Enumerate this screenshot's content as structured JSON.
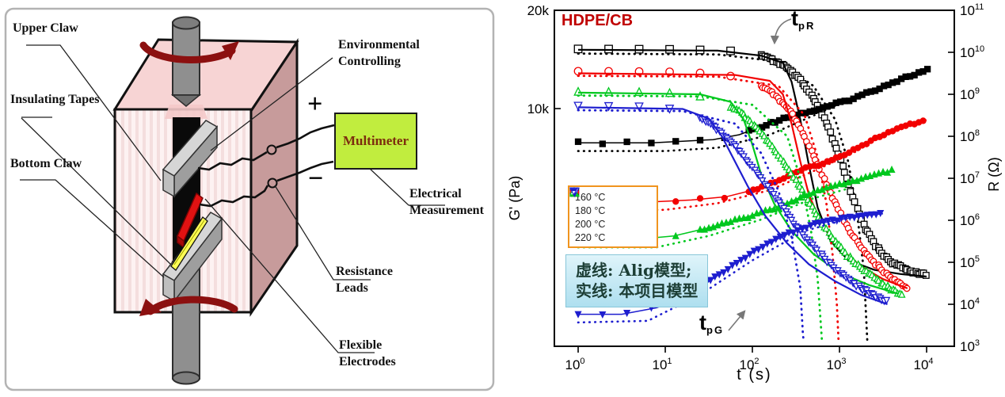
{
  "left_panel": {
    "labels": {
      "upper_claw": "Upper Claw",
      "insulating_tapes": "Insulating Tapes",
      "bottom_claw": "Bottom Claw",
      "environmental_line1": "Environmental",
      "environmental_line2": "Controlling",
      "electrical_line1": "Electrical",
      "electrical_line2": "Measurement",
      "resistance_line1": "Resistance",
      "resistance_line2": "Leads",
      "flexible_line1": "Flexible",
      "flexible_line2": "Electrodes",
      "plus_sign": "+",
      "minus_sign": "−",
      "multimeter": "Multimeter"
    },
    "colors": {
      "box_top": "#f7d4d4",
      "box_front": "#fdf1f1",
      "box_front_stripe": "#f4dede",
      "box_side": "#c79b9b",
      "rotation_arrow": "#8c1010",
      "shaft": "#8f8f8f",
      "claw_top": "#d6d6d6",
      "claw_front": "#9e9e9e",
      "claw_cap": "#bfbfbf",
      "sample": "#0a0a0a",
      "electrode": "#e01212",
      "tape": "#ffff55",
      "multimeter_bg": "#c1ed3e",
      "multimeter_text": "#7c2d0e"
    }
  },
  "chart_data": {
    "type": "scatter",
    "title": "HDPE/CB",
    "title_color": "#c00000",
    "xlabel": "t (s)",
    "ylabel_left": "G' (Pa)",
    "ylabel_right": "R (Ω)",
    "x_ticks": [
      0,
      1,
      2,
      3,
      4
    ],
    "right_axis_ticks": [
      11,
      10,
      9,
      8,
      7,
      6,
      5,
      4,
      3
    ],
    "left_axis_ticks": [
      {
        "label": "20k",
        "value": 20000
      },
      {
        "label": "10k",
        "value": 10000
      }
    ],
    "axes": {
      "x_log_min": -0.273,
      "x_log_max": 4.318,
      "left_log_min": 3.272,
      "left_log_max": 4.301,
      "right_log_min": 3,
      "right_log_max": 11,
      "grid": false
    },
    "legend": {
      "border_color": "#f0941e"
    },
    "annotations": [
      {
        "id": "tpR",
        "main": "t",
        "sub": "pR"
      },
      {
        "id": "tpG",
        "main": "t",
        "sub": "pG"
      }
    ],
    "note_box": {
      "line1": "虚线: Alig模型;",
      "line2": "实线: 本项目模型"
    },
    "series": [
      {
        "name": "160 °C",
        "color": "#000000",
        "symbol": "square",
        "dense_from": 2.1,
        "g_dense_from": 1.85,
        "R": [
          [
            0,
            10.08
          ],
          [
            1.2,
            10.07
          ],
          [
            1.8,
            10.03
          ],
          [
            2.1,
            9.93
          ],
          [
            2.35,
            9.7
          ],
          [
            2.55,
            9.35
          ],
          [
            2.7,
            8.9
          ],
          [
            2.85,
            8.3
          ],
          [
            3.0,
            7.5
          ],
          [
            3.1,
            6.9
          ],
          [
            3.2,
            6.3
          ],
          [
            3.3,
            5.8
          ],
          [
            3.45,
            5.3
          ],
          [
            3.6,
            5.0
          ],
          [
            3.8,
            4.8
          ],
          [
            4.0,
            4.7
          ]
        ],
        "R_solid": [
          [
            0,
            10.06
          ],
          [
            1.6,
            10.04
          ],
          [
            2.1,
            9.92
          ],
          [
            2.35,
            9.75
          ],
          [
            2.45,
            9.3
          ],
          [
            2.55,
            8.4
          ],
          [
            2.65,
            7.3
          ],
          [
            2.75,
            6.3
          ],
          [
            2.9,
            5.5
          ],
          [
            3.1,
            5.05
          ],
          [
            3.4,
            4.82
          ],
          [
            3.7,
            4.72
          ],
          [
            4.0,
            4.66
          ]
        ],
        "R_alig": [
          [
            0,
            9.97
          ],
          [
            1.6,
            9.95
          ],
          [
            2.3,
            9.78
          ],
          [
            2.7,
            9.2
          ],
          [
            2.95,
            8.4
          ],
          [
            3.1,
            7.4
          ],
          [
            3.2,
            6.2
          ],
          [
            3.28,
            4.8
          ],
          [
            3.32,
            3.1
          ]
        ],
        "G": [
          [
            0,
            3.895
          ],
          [
            0.85,
            3.895
          ],
          [
            1.2,
            3.9
          ],
          [
            1.55,
            3.905
          ],
          [
            1.85,
            3.92
          ],
          [
            2.1,
            3.945
          ],
          [
            2.4,
            3.975
          ],
          [
            2.8,
            4.0
          ],
          [
            3.2,
            4.035
          ],
          [
            3.7,
            4.09
          ],
          [
            4.03,
            4.12
          ]
        ],
        "G_alig": [
          [
            0,
            3.87
          ],
          [
            1.0,
            3.87
          ],
          [
            1.6,
            3.88
          ],
          [
            2.2,
            3.92
          ],
          [
            2.8,
            3.99
          ],
          [
            3.2,
            4.04
          ]
        ]
      },
      {
        "name": "180 °C",
        "color": "#f20000",
        "symbol": "circle",
        "dense_from": 1.9,
        "g_dense_from": 1.7,
        "R": [
          [
            0,
            9.55
          ],
          [
            1.0,
            9.54
          ],
          [
            1.5,
            9.5
          ],
          [
            1.8,
            9.42
          ],
          [
            2.05,
            9.25
          ],
          [
            2.25,
            9.0
          ],
          [
            2.45,
            8.55
          ],
          [
            2.6,
            8.0
          ],
          [
            2.75,
            7.3
          ],
          [
            2.9,
            6.6
          ],
          [
            3.05,
            6.0
          ],
          [
            3.2,
            5.5
          ],
          [
            3.35,
            5.1
          ],
          [
            3.5,
            4.8
          ],
          [
            3.65,
            4.55
          ],
          [
            3.8,
            4.35
          ]
        ],
        "R_solid": [
          [
            0,
            9.5
          ],
          [
            1.8,
            9.46
          ],
          [
            2.2,
            9.32
          ],
          [
            2.35,
            9.0
          ],
          [
            2.45,
            8.3
          ],
          [
            2.55,
            7.4
          ],
          [
            2.65,
            6.6
          ],
          [
            2.8,
            5.9
          ],
          [
            3.0,
            5.35
          ],
          [
            3.25,
            4.9
          ],
          [
            3.5,
            4.6
          ],
          [
            3.78,
            4.38
          ]
        ],
        "R_alig": [
          [
            0,
            9.44
          ],
          [
            1.6,
            9.42
          ],
          [
            2.3,
            9.2
          ],
          [
            2.6,
            8.5
          ],
          [
            2.75,
            7.5
          ],
          [
            2.85,
            6.4
          ],
          [
            2.92,
            5.2
          ],
          [
            2.97,
            4.0
          ],
          [
            2.99,
            3.1
          ]
        ],
        "G": [
          [
            0,
            3.715
          ],
          [
            0.9,
            3.715
          ],
          [
            1.3,
            3.72
          ],
          [
            1.7,
            3.73
          ],
          [
            2.0,
            3.75
          ],
          [
            2.3,
            3.78
          ],
          [
            2.6,
            3.815
          ],
          [
            2.9,
            3.84
          ],
          [
            3.2,
            3.88
          ],
          [
            3.5,
            3.92
          ],
          [
            3.8,
            3.95
          ],
          [
            4.0,
            3.965
          ]
        ],
        "G_alig": [
          [
            0,
            3.69
          ],
          [
            1.0,
            3.69
          ],
          [
            1.6,
            3.71
          ],
          [
            2.2,
            3.75
          ],
          [
            2.8,
            3.82
          ],
          [
            3.2,
            3.87
          ]
        ]
      },
      {
        "name": "200 °C",
        "color": "#00c81e",
        "symbol": "triangle-up",
        "dense_from": 1.6,
        "g_dense_from": 1.4,
        "R": [
          [
            0,
            9.07
          ],
          [
            0.9,
            9.06
          ],
          [
            1.3,
            9.0
          ],
          [
            1.6,
            8.87
          ],
          [
            1.85,
            8.6
          ],
          [
            2.05,
            8.2
          ],
          [
            2.25,
            7.7
          ],
          [
            2.45,
            7.1
          ],
          [
            2.6,
            6.6
          ],
          [
            2.75,
            6.1
          ],
          [
            2.9,
            5.65
          ],
          [
            3.1,
            5.15
          ],
          [
            3.3,
            4.8
          ],
          [
            3.5,
            4.5
          ],
          [
            3.65,
            4.3
          ],
          [
            3.72,
            4.22
          ]
        ],
        "R_solid": [
          [
            0,
            9.04
          ],
          [
            1.4,
            9.0
          ],
          [
            1.75,
            8.82
          ],
          [
            1.9,
            8.4
          ],
          [
            2.0,
            7.8
          ],
          [
            2.1,
            7.1
          ],
          [
            2.25,
            6.4
          ],
          [
            2.45,
            5.75
          ],
          [
            2.7,
            5.2
          ],
          [
            3.0,
            4.75
          ],
          [
            3.35,
            4.45
          ],
          [
            3.68,
            4.25
          ]
        ],
        "R_alig": [
          [
            0,
            8.97
          ],
          [
            1.4,
            8.95
          ],
          [
            2.0,
            8.75
          ],
          [
            2.4,
            8.0
          ],
          [
            2.55,
            7.0
          ],
          [
            2.67,
            5.8
          ],
          [
            2.75,
            4.6
          ],
          [
            2.79,
            3.4
          ],
          [
            2.8,
            3.1
          ]
        ],
        "G": [
          [
            0,
            3.6
          ],
          [
            0.7,
            3.6
          ],
          [
            1.1,
            3.61
          ],
          [
            1.5,
            3.635
          ],
          [
            1.9,
            3.665
          ],
          [
            2.3,
            3.7
          ],
          [
            2.7,
            3.745
          ],
          [
            3.1,
            3.775
          ],
          [
            3.45,
            3.8
          ],
          [
            3.6,
            3.81
          ]
        ],
        "G_alig": [
          [
            0,
            3.575
          ],
          [
            0.9,
            3.575
          ],
          [
            1.5,
            3.61
          ],
          [
            2.1,
            3.66
          ],
          [
            2.7,
            3.725
          ],
          [
            3.1,
            3.755
          ]
        ]
      },
      {
        "name": "220 °C",
        "color": "#1e1ecf",
        "symbol": "triangle-down",
        "dense_from": 1.4,
        "g_dense_from": 1.0,
        "R": [
          [
            0,
            8.72
          ],
          [
            0.8,
            8.7
          ],
          [
            1.15,
            8.63
          ],
          [
            1.4,
            8.45
          ],
          [
            1.6,
            8.15
          ],
          [
            1.8,
            7.75
          ],
          [
            2.0,
            7.25
          ],
          [
            2.2,
            6.7
          ],
          [
            2.4,
            6.15
          ],
          [
            2.6,
            5.6
          ],
          [
            2.8,
            5.15
          ],
          [
            3.0,
            4.75
          ],
          [
            3.2,
            4.45
          ],
          [
            3.4,
            4.2
          ],
          [
            3.55,
            4.05
          ]
        ],
        "R_solid": [
          [
            0,
            8.69
          ],
          [
            1.2,
            8.65
          ],
          [
            1.5,
            8.42
          ],
          [
            1.65,
            8.0
          ],
          [
            1.8,
            7.4
          ],
          [
            1.95,
            6.8
          ],
          [
            2.15,
            6.1
          ],
          [
            2.4,
            5.45
          ],
          [
            2.65,
            4.95
          ],
          [
            2.95,
            4.55
          ],
          [
            3.25,
            4.22
          ],
          [
            3.55,
            4.0
          ]
        ],
        "R_alig": [
          [
            0,
            8.62
          ],
          [
            1.2,
            8.6
          ],
          [
            1.8,
            8.3
          ],
          [
            2.1,
            7.6
          ],
          [
            2.3,
            6.7
          ],
          [
            2.45,
            5.6
          ],
          [
            2.55,
            4.4
          ],
          [
            2.58,
            3.3
          ],
          [
            2.59,
            3.1
          ]
        ],
        "G": [
          [
            0,
            3.37
          ],
          [
            0.5,
            3.37
          ],
          [
            0.9,
            3.39
          ],
          [
            1.2,
            3.42
          ],
          [
            1.5,
            3.47
          ],
          [
            1.8,
            3.525
          ],
          [
            2.1,
            3.575
          ],
          [
            2.4,
            3.615
          ],
          [
            2.7,
            3.645
          ],
          [
            3.0,
            3.66
          ],
          [
            3.3,
            3.672
          ],
          [
            3.5,
            3.678
          ]
        ],
        "G_alig": [
          [
            0,
            3.345
          ],
          [
            0.8,
            3.35
          ],
          [
            1.4,
            3.43
          ],
          [
            2.0,
            3.535
          ],
          [
            2.6,
            3.625
          ],
          [
            3.0,
            3.655
          ]
        ]
      }
    ]
  }
}
